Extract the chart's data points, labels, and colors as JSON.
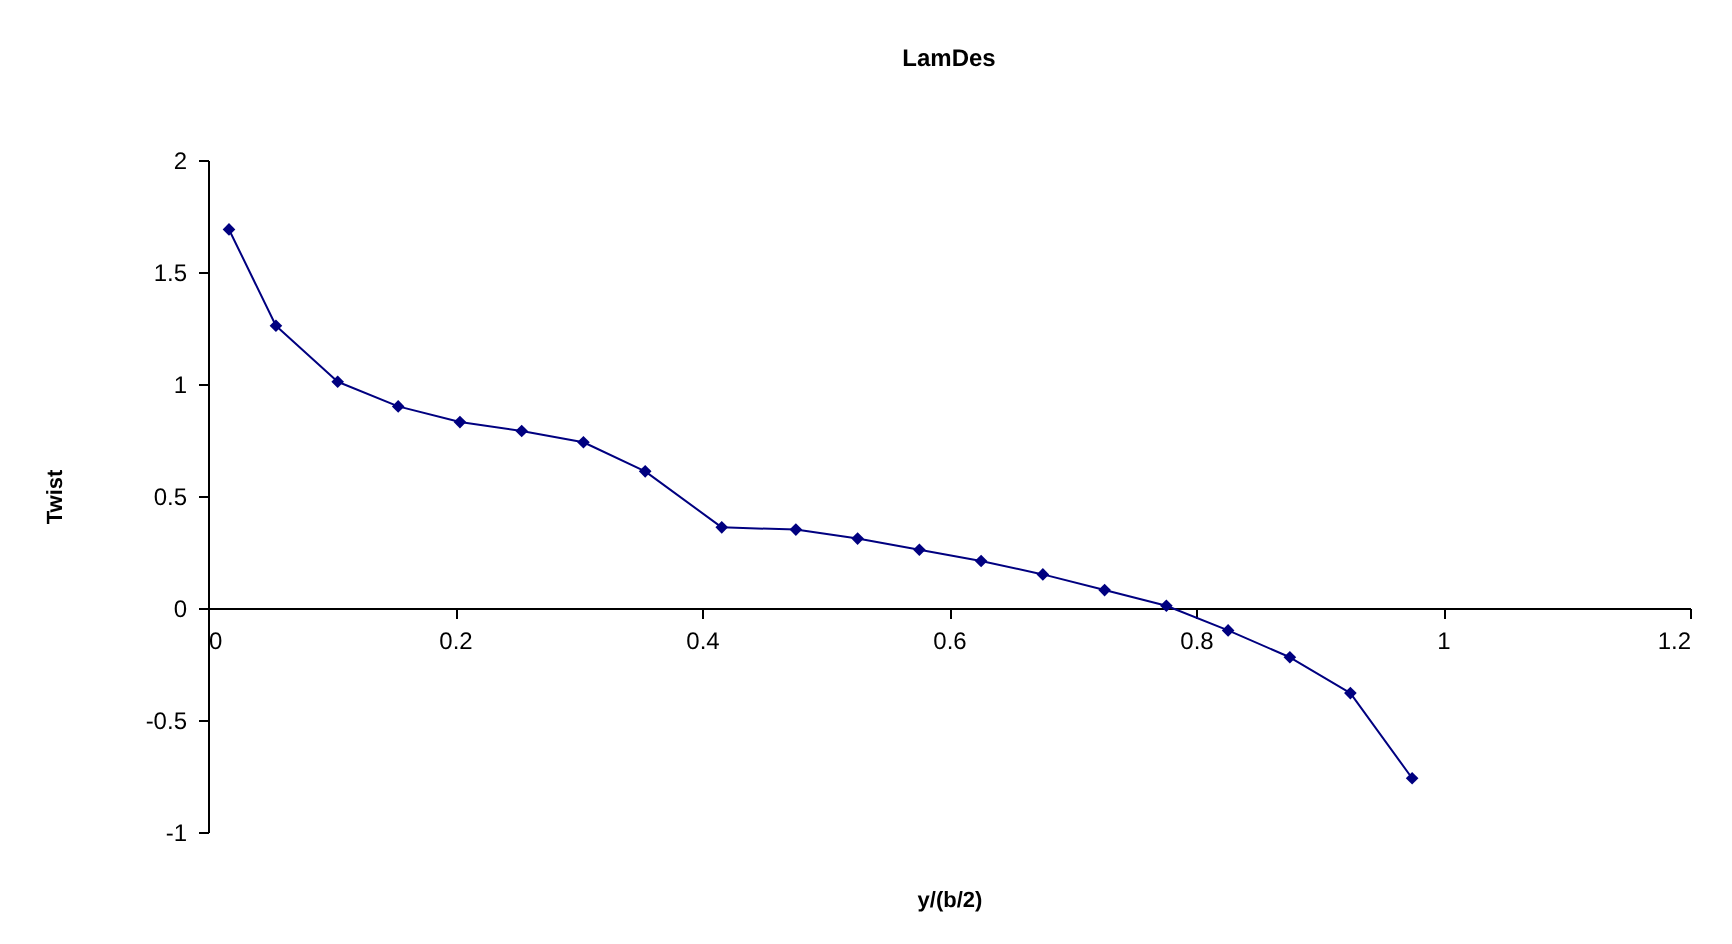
{
  "chart_data": {
    "type": "line",
    "title": "LamDes",
    "xlabel": "y/(b/2)",
    "ylabel": "Twist",
    "x": [
      0.017,
      0.055,
      0.105,
      0.154,
      0.204,
      0.254,
      0.304,
      0.354,
      0.416,
      0.476,
      0.526,
      0.576,
      0.626,
      0.676,
      0.726,
      0.776,
      0.826,
      0.876,
      0.925,
      0.975
    ],
    "series": [
      {
        "color": "#000080",
        "values": [
          1.69,
          1.26,
          1.01,
          0.9,
          0.83,
          0.79,
          0.74,
          0.61,
          0.36,
          0.35,
          0.31,
          0.26,
          0.21,
          0.15,
          0.08,
          0.01,
          -0.1,
          -0.22,
          -0.38,
          -0.76
        ]
      }
    ],
    "xlim": [
      0,
      1.2
    ],
    "xticks": [
      0,
      0.2,
      0.4,
      0.6,
      0.8,
      1,
      1.2
    ],
    "ylim": [
      -1,
      2
    ],
    "yticks": [
      -1,
      -0.5,
      0,
      0.5,
      1,
      1.5,
      2
    ],
    "grid": false,
    "legend": false,
    "marker": "diamond",
    "line_style": "solid"
  }
}
